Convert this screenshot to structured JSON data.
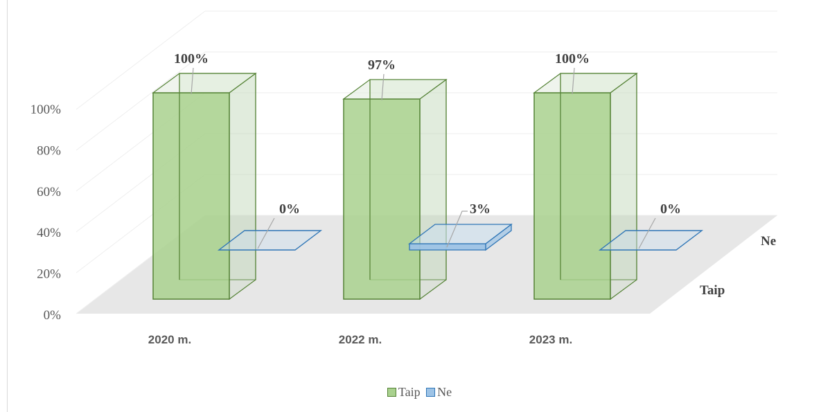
{
  "chart_data": {
    "type": "bar",
    "categories": [
      "2020 m.",
      "2022 m.",
      "2023 m."
    ],
    "series": [
      {
        "name": "Taip",
        "values": [
          100,
          97,
          100
        ],
        "labels": [
          "100%",
          "97%",
          "100%"
        ],
        "color": "#a9d18e",
        "stroke": "#548235"
      },
      {
        "name": "Ne",
        "values": [
          0,
          3,
          0
        ],
        "labels": [
          "0%",
          "3%",
          "0%"
        ],
        "color": "#9dc3e6",
        "stroke": "#2e75b6"
      }
    ],
    "yticks": [
      "0%",
      "20%",
      "40%",
      "60%",
      "80%",
      "100%"
    ],
    "ylim": [
      0,
      120
    ],
    "grid": true,
    "legend_position": "bottom",
    "is_3d": true
  }
}
